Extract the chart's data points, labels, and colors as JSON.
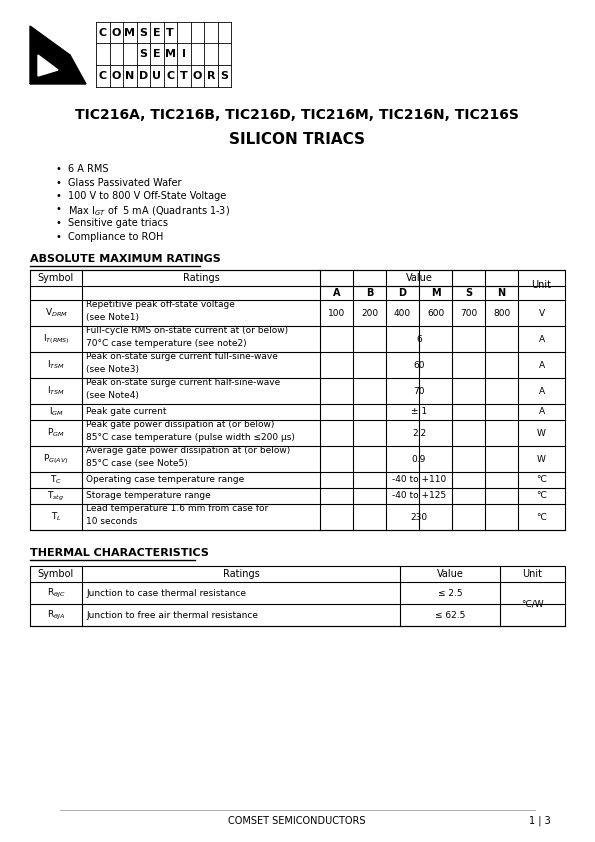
{
  "title_products": "TIC216A, TIC216B, TIC216D, TIC216M, TIC216N, TIC216S",
  "title_type": "SILICON TRIACS",
  "bullet_texts": [
    "6 A RMS",
    "Glass Passivated Wafer",
    "100 V to 800 V Off-State Voltage",
    "Max I$_{GT}$ of  5 mA (Quadrants 1-3)",
    "Sensitive gate triacs",
    "Compliance to ROH"
  ],
  "section1_title": "ABSOLUTE MAXIMUM RATINGS",
  "table1_sym": [
    "V$_{DRM}$",
    "I$_{T(RMS)}$",
    "I$_{TSM}$",
    "I$_{TSM}$",
    "I$_{GM}$",
    "P$_{GM}$",
    "P$_{G(AV)}$",
    "T$_{C}$",
    "T$_{stg}$",
    "T$_{L}$"
  ],
  "table1_ratings": [
    "Repetitive peak off-state voltage\n(see Note1)",
    "Full-cycle RMS on-state current at (or below)\n70°C case temperature (see note2)",
    "Peak on-state surge current full-sine-wave\n(see Note3)",
    "Peak on-state surge current half-sine-wave\n(see Note4)",
    "Peak gate current",
    "Peak gate power dissipation at (or below)\n85°C case temperature (pulse width ≤200 μs)",
    "Average gate power dissipation at (or below)\n85°C case (see Note5)",
    "Operating case temperature range",
    "Storage temperature range",
    "Lead temperature 1.6 mm from case for\n10 seconds"
  ],
  "table1_vals_individual": [
    [
      "100",
      "200",
      "400",
      "600",
      "700",
      "800"
    ]
  ],
  "table1_vals_span": [
    "6",
    "60",
    "70",
    "± 1",
    "2.2",
    "0.9",
    "-40 to +110",
    "-40 to +125",
    "230"
  ],
  "table1_units": [
    "V",
    "A",
    "A",
    "A",
    "A",
    "W",
    "W",
    "°C",
    "°C",
    "°C"
  ],
  "section2_title": "THERMAL CHARACTERISTICS",
  "table2_sym": [
    "R$_{\\theta JC}$",
    "R$_{\\theta JA}$"
  ],
  "table2_ratings": [
    "Junction to case thermal resistance",
    "Junction to free air thermal resistance"
  ],
  "table2_vals": [
    "≤ 2.5",
    "≤ 62.5"
  ],
  "table2_unit": "°C/W",
  "footer_left": "COMSET SEMICONDUCTORS",
  "footer_right": "1 | 3",
  "bg_color": "#ffffff"
}
